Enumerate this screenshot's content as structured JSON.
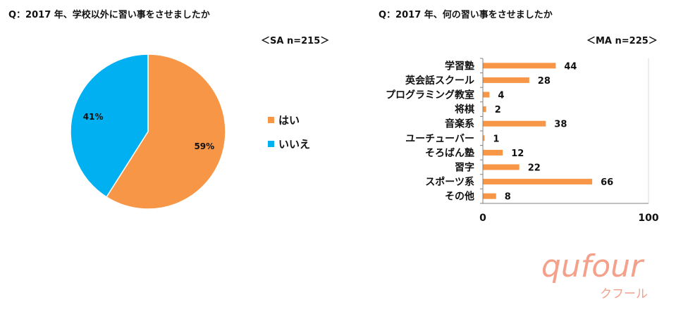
{
  "left": {
    "title": "Q：2017 年、学校以外に習い事をさせましたか",
    "sample_note": "＜SA n=215＞"
  },
  "right": {
    "title": "Q：2017 年、何の習い事をさせましたか",
    "sample_note": "＜MA n=225＞"
  },
  "colors": {
    "orange": "#f79646",
    "blue": "#00b0f0"
  },
  "chart_data": [
    {
      "type": "pie",
      "categories": [
        "はい",
        "いいえ"
      ],
      "values": [
        59,
        41
      ],
      "labels": [
        "59%",
        "41%"
      ],
      "legend_position": "right"
    },
    {
      "type": "bar",
      "orientation": "horizontal",
      "categories": [
        "学習塾",
        "英会話スクール",
        "プログラミング教室",
        "将棋",
        "音楽系",
        "ユーチューバー",
        "そろばん塾",
        "習字",
        "スポーツ系",
        "その他"
      ],
      "values": [
        44,
        28,
        4,
        2,
        38,
        1,
        12,
        22,
        66,
        8
      ],
      "xlim": [
        0,
        100
      ],
      "xticks": [
        "0",
        "100"
      ]
    }
  ],
  "logo": {
    "wordmark": "qufour",
    "kana": "クフール"
  }
}
